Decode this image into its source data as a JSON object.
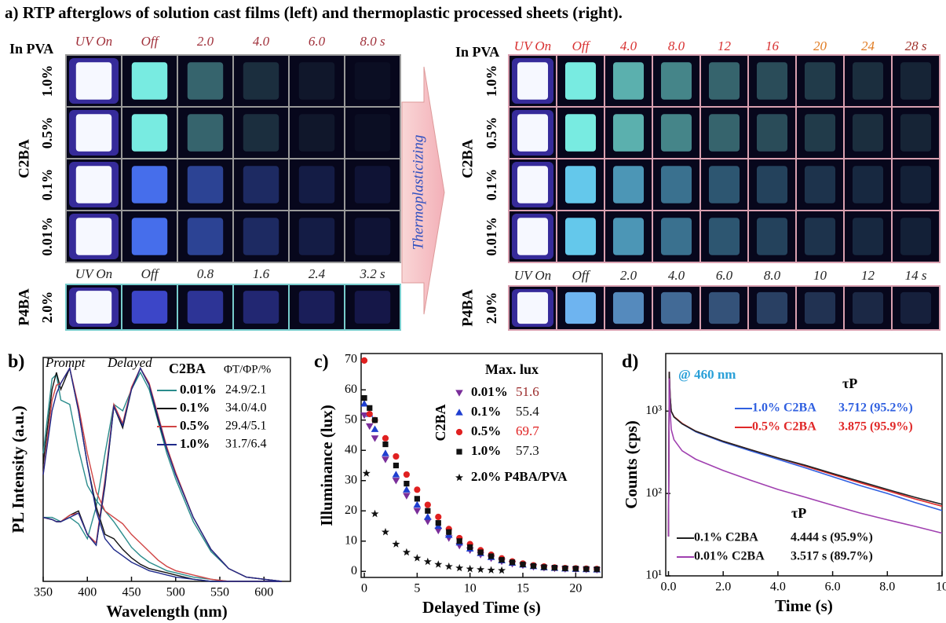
{
  "panel_a": {
    "title": "a) RTP afterglows of solution cast films (left) and thermoplastic processed sheets (right).",
    "arrow_label": "Thermoplasticizing",
    "left": {
      "matrix_label": "In PVA",
      "c2ba": {
        "label": "C2BA",
        "times": [
          "UV On",
          "Off",
          "2.0",
          "4.0",
          "6.0",
          "8.0 s"
        ],
        "rows": [
          "1.0%",
          "0.5%",
          "0.1%",
          "0.01%"
        ]
      },
      "p4ba": {
        "label": "P4BA",
        "times": [
          "UV On",
          "Off",
          "0.8",
          "1.6",
          "2.4",
          "3.2 s"
        ],
        "rows": [
          "2.0%"
        ]
      }
    },
    "right": {
      "matrix_label": "In PVA",
      "c2ba": {
        "label": "C2BA",
        "times": [
          "UV On",
          "Off",
          "4.0",
          "8.0",
          "12",
          "16",
          "20",
          "24",
          "28 s"
        ],
        "rows": [
          "1.0%",
          "0.5%",
          "0.1%",
          "0.01%"
        ]
      },
      "p4ba": {
        "label": "P4BA",
        "times": [
          "UV On",
          "Off",
          "2.0",
          "4.0",
          "6.0",
          "8.0",
          "10",
          "12",
          "14 s"
        ],
        "rows": [
          "2.0%"
        ]
      }
    }
  },
  "chart_data": [
    {
      "type": "line",
      "panel": "b)",
      "annotations": [
        "Prompt",
        "Delayed"
      ],
      "legend_title": "C2BA",
      "legend_header": "ΦT/ΦP/%",
      "x_label": "Wavelength (nm)",
      "y_label": "PL Intensity (a.u.)",
      "xlim": [
        350,
        630
      ],
      "xticks": [
        350,
        400,
        450,
        500,
        550,
        600
      ],
      "ylim": [
        0,
        1.05
      ],
      "x": [
        350,
        360,
        365,
        370,
        380,
        390,
        400,
        410,
        420,
        430,
        440,
        450,
        460,
        470,
        480,
        490,
        500,
        520,
        540,
        560,
        580,
        600,
        620
      ],
      "series": [
        {
          "name": "0.01%",
          "color": "#2a8c8c",
          "yields": "24.9/2.1",
          "values": [
            0.6,
            0.95,
            0.97,
            0.85,
            0.83,
            0.62,
            0.45,
            0.38,
            0.33,
            0.28,
            0.22,
            0.16,
            0.12,
            0.09,
            0.07,
            0.05,
            0.04,
            0.02,
            0.01,
            0,
            0,
            0,
            0
          ],
          "delayed_values": [
            0.3,
            0.3,
            0.29,
            0.28,
            0.3,
            0.27,
            0.2,
            0.35,
            0.6,
            0.83,
            0.8,
            0.9,
            0.98,
            0.9,
            0.75,
            0.6,
            0.48,
            0.28,
            0.14,
            0.06,
            0.02,
            0.01,
            0
          ]
        },
        {
          "name": "0.1%",
          "color": "#111111",
          "yields": "34.0/4.0",
          "values": [
            0.55,
            0.9,
            0.98,
            0.9,
            1.0,
            0.8,
            0.55,
            0.35,
            0.22,
            0.2,
            0.15,
            0.11,
            0.08,
            0.06,
            0.05,
            0.04,
            0.03,
            0.01,
            0,
            0,
            0,
            0,
            0
          ],
          "delayed_values": [
            0.3,
            0.29,
            0.28,
            0.28,
            0.31,
            0.33,
            0.22,
            0.17,
            0.45,
            0.82,
            0.72,
            0.9,
            1.0,
            0.92,
            0.76,
            0.62,
            0.5,
            0.3,
            0.15,
            0.06,
            0.02,
            0.01,
            0
          ]
        },
        {
          "name": "0.5%",
          "color": "#d04545",
          "yields": "29.4/5.1",
          "values": [
            0.5,
            0.85,
            0.92,
            0.93,
            1.0,
            0.82,
            0.6,
            0.42,
            0.33,
            0.3,
            0.27,
            0.22,
            0.18,
            0.14,
            0.1,
            0.07,
            0.05,
            0.03,
            0.01,
            0,
            0,
            0,
            0
          ],
          "delayed_values": [
            0.3,
            0.29,
            0.28,
            0.28,
            0.31,
            0.32,
            0.22,
            0.18,
            0.48,
            0.83,
            0.74,
            0.91,
            1.0,
            0.93,
            0.78,
            0.63,
            0.51,
            0.3,
            0.15,
            0.06,
            0.02,
            0.01,
            0
          ]
        },
        {
          "name": "1.0%",
          "color": "#1f2a8a",
          "yields": "31.7/6.4",
          "values": [
            0.5,
            0.8,
            0.88,
            0.93,
            1.0,
            0.8,
            0.55,
            0.33,
            0.2,
            0.15,
            0.12,
            0.09,
            0.07,
            0.05,
            0.04,
            0.03,
            0.02,
            0.01,
            0,
            0,
            0,
            0,
            0
          ],
          "delayed_values": [
            0.3,
            0.29,
            0.28,
            0.28,
            0.3,
            0.32,
            0.22,
            0.17,
            0.46,
            0.82,
            0.73,
            0.9,
            1.0,
            0.92,
            0.77,
            0.62,
            0.5,
            0.3,
            0.15,
            0.06,
            0.02,
            0.01,
            0
          ]
        }
      ]
    },
    {
      "type": "scatter",
      "panel": "c)",
      "legend_title": "Max. lux",
      "group_label": "C2BA",
      "x_label": "Delayed Time (s)",
      "y_label": "Illuminance (lux)",
      "xlim": [
        -0.3,
        22.5
      ],
      "xticks": [
        0,
        5,
        10,
        15,
        20
      ],
      "ylim": [
        -2,
        72
      ],
      "yticks": [
        0,
        10,
        20,
        30,
        40,
        50,
        60,
        70
      ],
      "x": [
        0,
        0.5,
        1,
        2,
        3,
        4,
        5,
        6,
        7,
        8,
        9,
        10,
        11,
        12,
        13,
        14,
        15,
        16,
        17,
        18,
        19,
        20,
        21,
        22
      ],
      "series": [
        {
          "name": "0.01%",
          "color": "#7a2e9a",
          "marker": "triangle-down",
          "max_lux": 51.6,
          "max_lux_color": "#9a2a2a",
          "values": [
            51.6,
            48,
            44,
            37,
            30,
            25,
            20,
            16.5,
            13.5,
            11,
            8.5,
            7,
            5.5,
            4.3,
            3.3,
            2.5,
            2,
            1.5,
            1.2,
            1,
            0.8,
            0.7,
            0.6,
            0.5
          ]
        },
        {
          "name": "0.1%",
          "color": "#1f3fd0",
          "marker": "triangle",
          "max_lux": 55.4,
          "max_lux_color": "#111111",
          "values": [
            55.4,
            52,
            47,
            39,
            32,
            27,
            22,
            18,
            15,
            12,
            9.5,
            7.5,
            6,
            4.7,
            3.6,
            2.8,
            2.2,
            1.7,
            1.3,
            1.1,
            0.9,
            0.8,
            0.7,
            0.6
          ]
        },
        {
          "name": "0.5%",
          "color": "#e02020",
          "marker": "circle",
          "max_lux": 69.7,
          "max_lux_color": "#e02020",
          "values": [
            69.7,
            52,
            50,
            44,
            38,
            32,
            27,
            22,
            18,
            14,
            11,
            9,
            7,
            5.5,
            4.3,
            3.3,
            2.6,
            2,
            1.6,
            1.3,
            1.1,
            1,
            0.9,
            0.8
          ]
        },
        {
          "name": "1.0%",
          "color": "#111111",
          "marker": "square",
          "max_lux": 57.3,
          "max_lux_color": "#111111",
          "values": [
            57.3,
            54,
            50,
            42,
            35,
            29,
            24,
            20,
            16,
            13,
            10,
            8,
            6.3,
            5,
            3.8,
            3,
            2.3,
            1.8,
            1.4,
            1.2,
            1,
            0.9,
            0.8,
            0.7
          ]
        },
        {
          "name": "2.0% P4BA/PVA",
          "color": "#111111",
          "marker": "star",
          "x": [
            0.2,
            1,
            2,
            3,
            4,
            5,
            6,
            7,
            8,
            9,
            10,
            11,
            12,
            13
          ],
          "values": [
            32.4,
            19,
            13,
            9,
            6.3,
            4.4,
            3.2,
            2.3,
            1.6,
            1.1,
            0.8,
            0.6,
            0.4,
            0.3
          ]
        }
      ]
    },
    {
      "type": "line",
      "panel": "d)",
      "y_scale": "log",
      "annotations": [
        "@ 460 nm",
        "τP",
        "τP"
      ],
      "x_label": "Time (s)",
      "y_label": "Counts (cps)",
      "xlim": [
        -0.1,
        10
      ],
      "xticks": [
        {
          "value": 0,
          "label": "0.0"
        },
        {
          "value": 2,
          "label": "2.0"
        },
        {
          "value": 4,
          "label": "4.0"
        },
        {
          "value": 6,
          "label": "6.0"
        },
        {
          "value": 8,
          "label": "8.0"
        },
        10
      ],
      "ylim": [
        10,
        5000
      ],
      "yticks": [
        {
          "value": 10,
          "label": "10¹"
        },
        {
          "value": 100,
          "label": "10²"
        },
        {
          "value": 1000,
          "label": "10³"
        }
      ],
      "x": [
        0,
        0.03,
        0.06,
        0.1,
        0.2,
        0.5,
        1,
        2,
        3,
        4,
        5,
        6,
        7,
        8,
        9,
        10
      ],
      "series": [
        {
          "name": "1.0% C2BA",
          "color": "#3060e0",
          "lifetime": "3.712 (95.2%)",
          "values": [
            30,
            3000,
            1500,
            1000,
            850,
            700,
            560,
            420,
            330,
            260,
            205,
            160,
            125,
            100,
            78,
            62
          ]
        },
        {
          "name": "0.5% C2BA",
          "color": "#e02828",
          "lifetime": "3.875 (95.9%)",
          "values": [
            30,
            3000,
            1500,
            1000,
            860,
            710,
            570,
            430,
            340,
            270,
            215,
            170,
            135,
            108,
            86,
            70
          ]
        },
        {
          "name": "0.1% C2BA",
          "color": "#222222",
          "lifetime": "4.444 s (95.9%)",
          "values": [
            30,
            3000,
            1500,
            1000,
            850,
            700,
            570,
            430,
            340,
            270,
            220,
            175,
            140,
            112,
            90,
            74
          ]
        },
        {
          "name": "0.01% C2BA",
          "color": "#a040b0",
          "lifetime": "3.517 s (89.7%)",
          "values": [
            30,
            2500,
            1000,
            600,
            450,
            330,
            260,
            190,
            145,
            112,
            90,
            72,
            58,
            48,
            40,
            33
          ]
        }
      ]
    }
  ]
}
